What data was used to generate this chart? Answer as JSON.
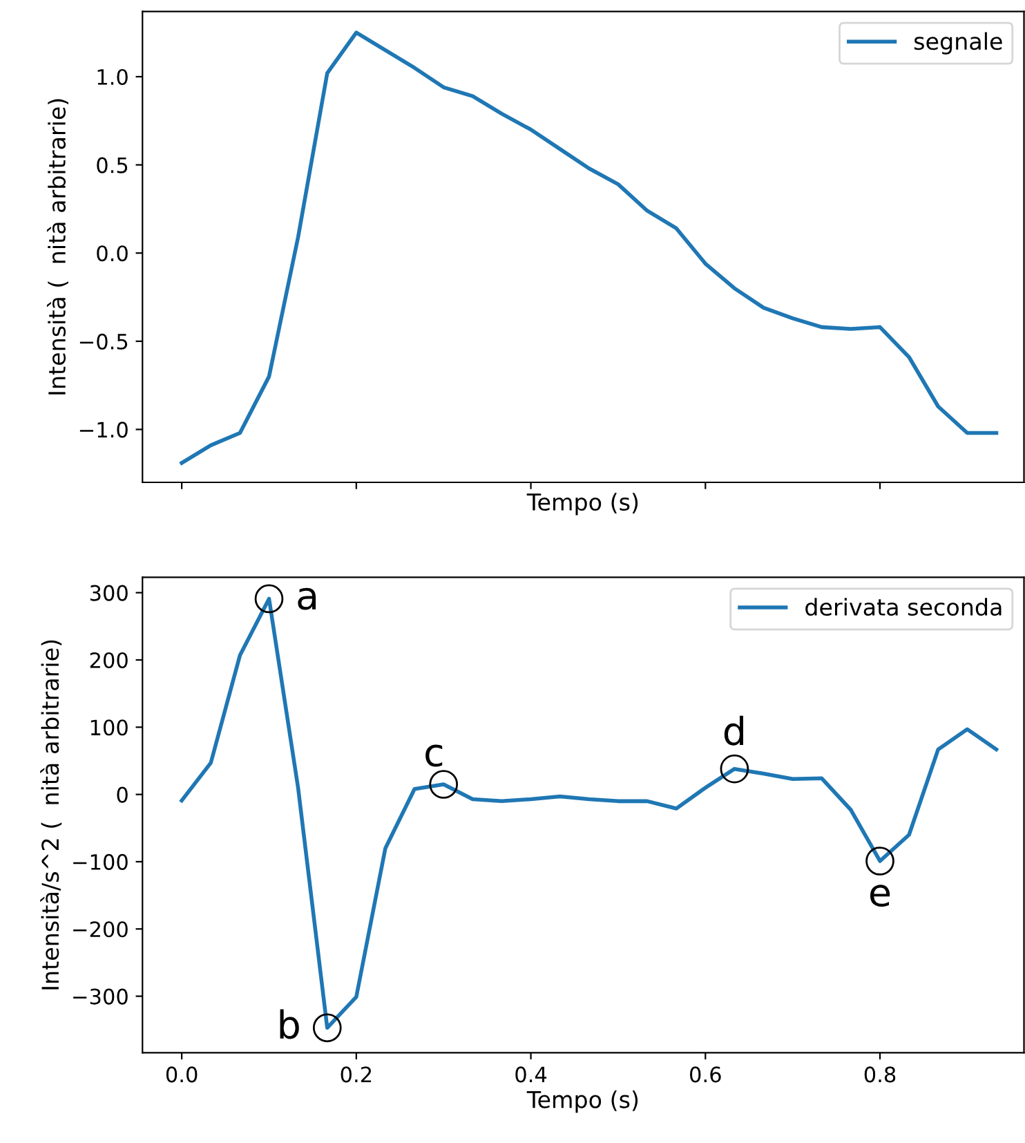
{
  "chart_data": [
    {
      "type": "line",
      "xlabel": "Tempo (s)",
      "ylabel": "Intensità (  nità arbitrarie)",
      "x": [
        0,
        0.0333,
        0.0667,
        0.1,
        0.1333,
        0.1667,
        0.2,
        0.2333,
        0.2667,
        0.3,
        0.3333,
        0.3667,
        0.4,
        0.4333,
        0.4667,
        0.5,
        0.5333,
        0.5667,
        0.6,
        0.6333,
        0.6667,
        0.7,
        0.7333,
        0.7667,
        0.8,
        0.8333,
        0.8667,
        0.9,
        0.9333
      ],
      "series": [
        {
          "name": "segnale",
          "color": "#1f77b4",
          "values": [
            -1.19,
            -1.09,
            -1.02,
            -0.7,
            0.09,
            1.02,
            1.25,
            1.15,
            1.05,
            0.94,
            0.89,
            0.79,
            0.7,
            0.59,
            0.48,
            0.39,
            0.24,
            0.14,
            -0.06,
            -0.2,
            -0.31,
            -0.37,
            -0.42,
            -0.43,
            -0.42,
            -0.59,
            -0.87,
            -1.02,
            -1.02
          ]
        }
      ],
      "xlim": [
        -0.045,
        0.965
      ],
      "xticks": [
        0,
        0.2,
        0.4,
        0.6,
        0.8
      ],
      "ylim": [
        -1.3,
        1.37
      ],
      "yticks": [
        {
          "value": -1.0,
          "label": "−1.0"
        },
        {
          "value": -0.5,
          "label": "−0.5"
        },
        {
          "value": 0.0,
          "label": "0.0"
        },
        {
          "value": 0.5,
          "label": "0.5"
        },
        {
          "value": 1.0,
          "label": "1.0"
        }
      ],
      "tick_labels": "y",
      "legend": "top right",
      "grid": false
    },
    {
      "type": "line",
      "xlabel": "Tempo (s)",
      "ylabel": "Intensità/s^2 (  nità arbitrarie)",
      "x": [
        0,
        0.0333,
        0.0667,
        0.1,
        0.1333,
        0.1667,
        0.2,
        0.2333,
        0.2667,
        0.3,
        0.3333,
        0.3667,
        0.4,
        0.4333,
        0.4667,
        0.5,
        0.5333,
        0.5667,
        0.6,
        0.6333,
        0.6667,
        0.7,
        0.7333,
        0.7667,
        0.8,
        0.8333,
        0.8667,
        0.9,
        0.9333
      ],
      "series": [
        {
          "name": "derivata seconda",
          "color": "#1f77b4",
          "values": [
            -9,
            47,
            207,
            291,
            10,
            -347,
            -301,
            -80,
            8,
            15,
            -7,
            -10,
            -7,
            -3,
            -7,
            -10,
            -10,
            -21,
            10,
            38,
            31,
            23,
            24,
            -23,
            -99,
            -60,
            67,
            97,
            67
          ]
        }
      ],
      "annotations": [
        {
          "text": "a",
          "x": 0.1,
          "y": 291
        },
        {
          "text": "b",
          "x": 0.1667,
          "y": -347
        },
        {
          "text": "c",
          "x": 0.3,
          "y": 15
        },
        {
          "text": "d",
          "x": 0.6333,
          "y": 38
        },
        {
          "text": "e",
          "x": 0.8,
          "y": -99
        }
      ],
      "xlim": [
        -0.045,
        0.965
      ],
      "xticks": [
        {
          "value": 0,
          "label": "0.0"
        },
        0.2,
        0.4,
        0.6,
        0.8
      ],
      "ylim": [
        -384,
        323
      ],
      "yticks": [
        {
          "value": -300,
          "label": "−300"
        },
        {
          "value": -200,
          "label": "−200"
        },
        {
          "value": -100,
          "label": "−100"
        },
        {
          "value": 0,
          "label": "0"
        },
        {
          "value": 100,
          "label": "100"
        },
        {
          "value": 200,
          "label": "200"
        },
        {
          "value": 300,
          "label": "300"
        }
      ],
      "legend": "top right",
      "grid": false
    }
  ]
}
